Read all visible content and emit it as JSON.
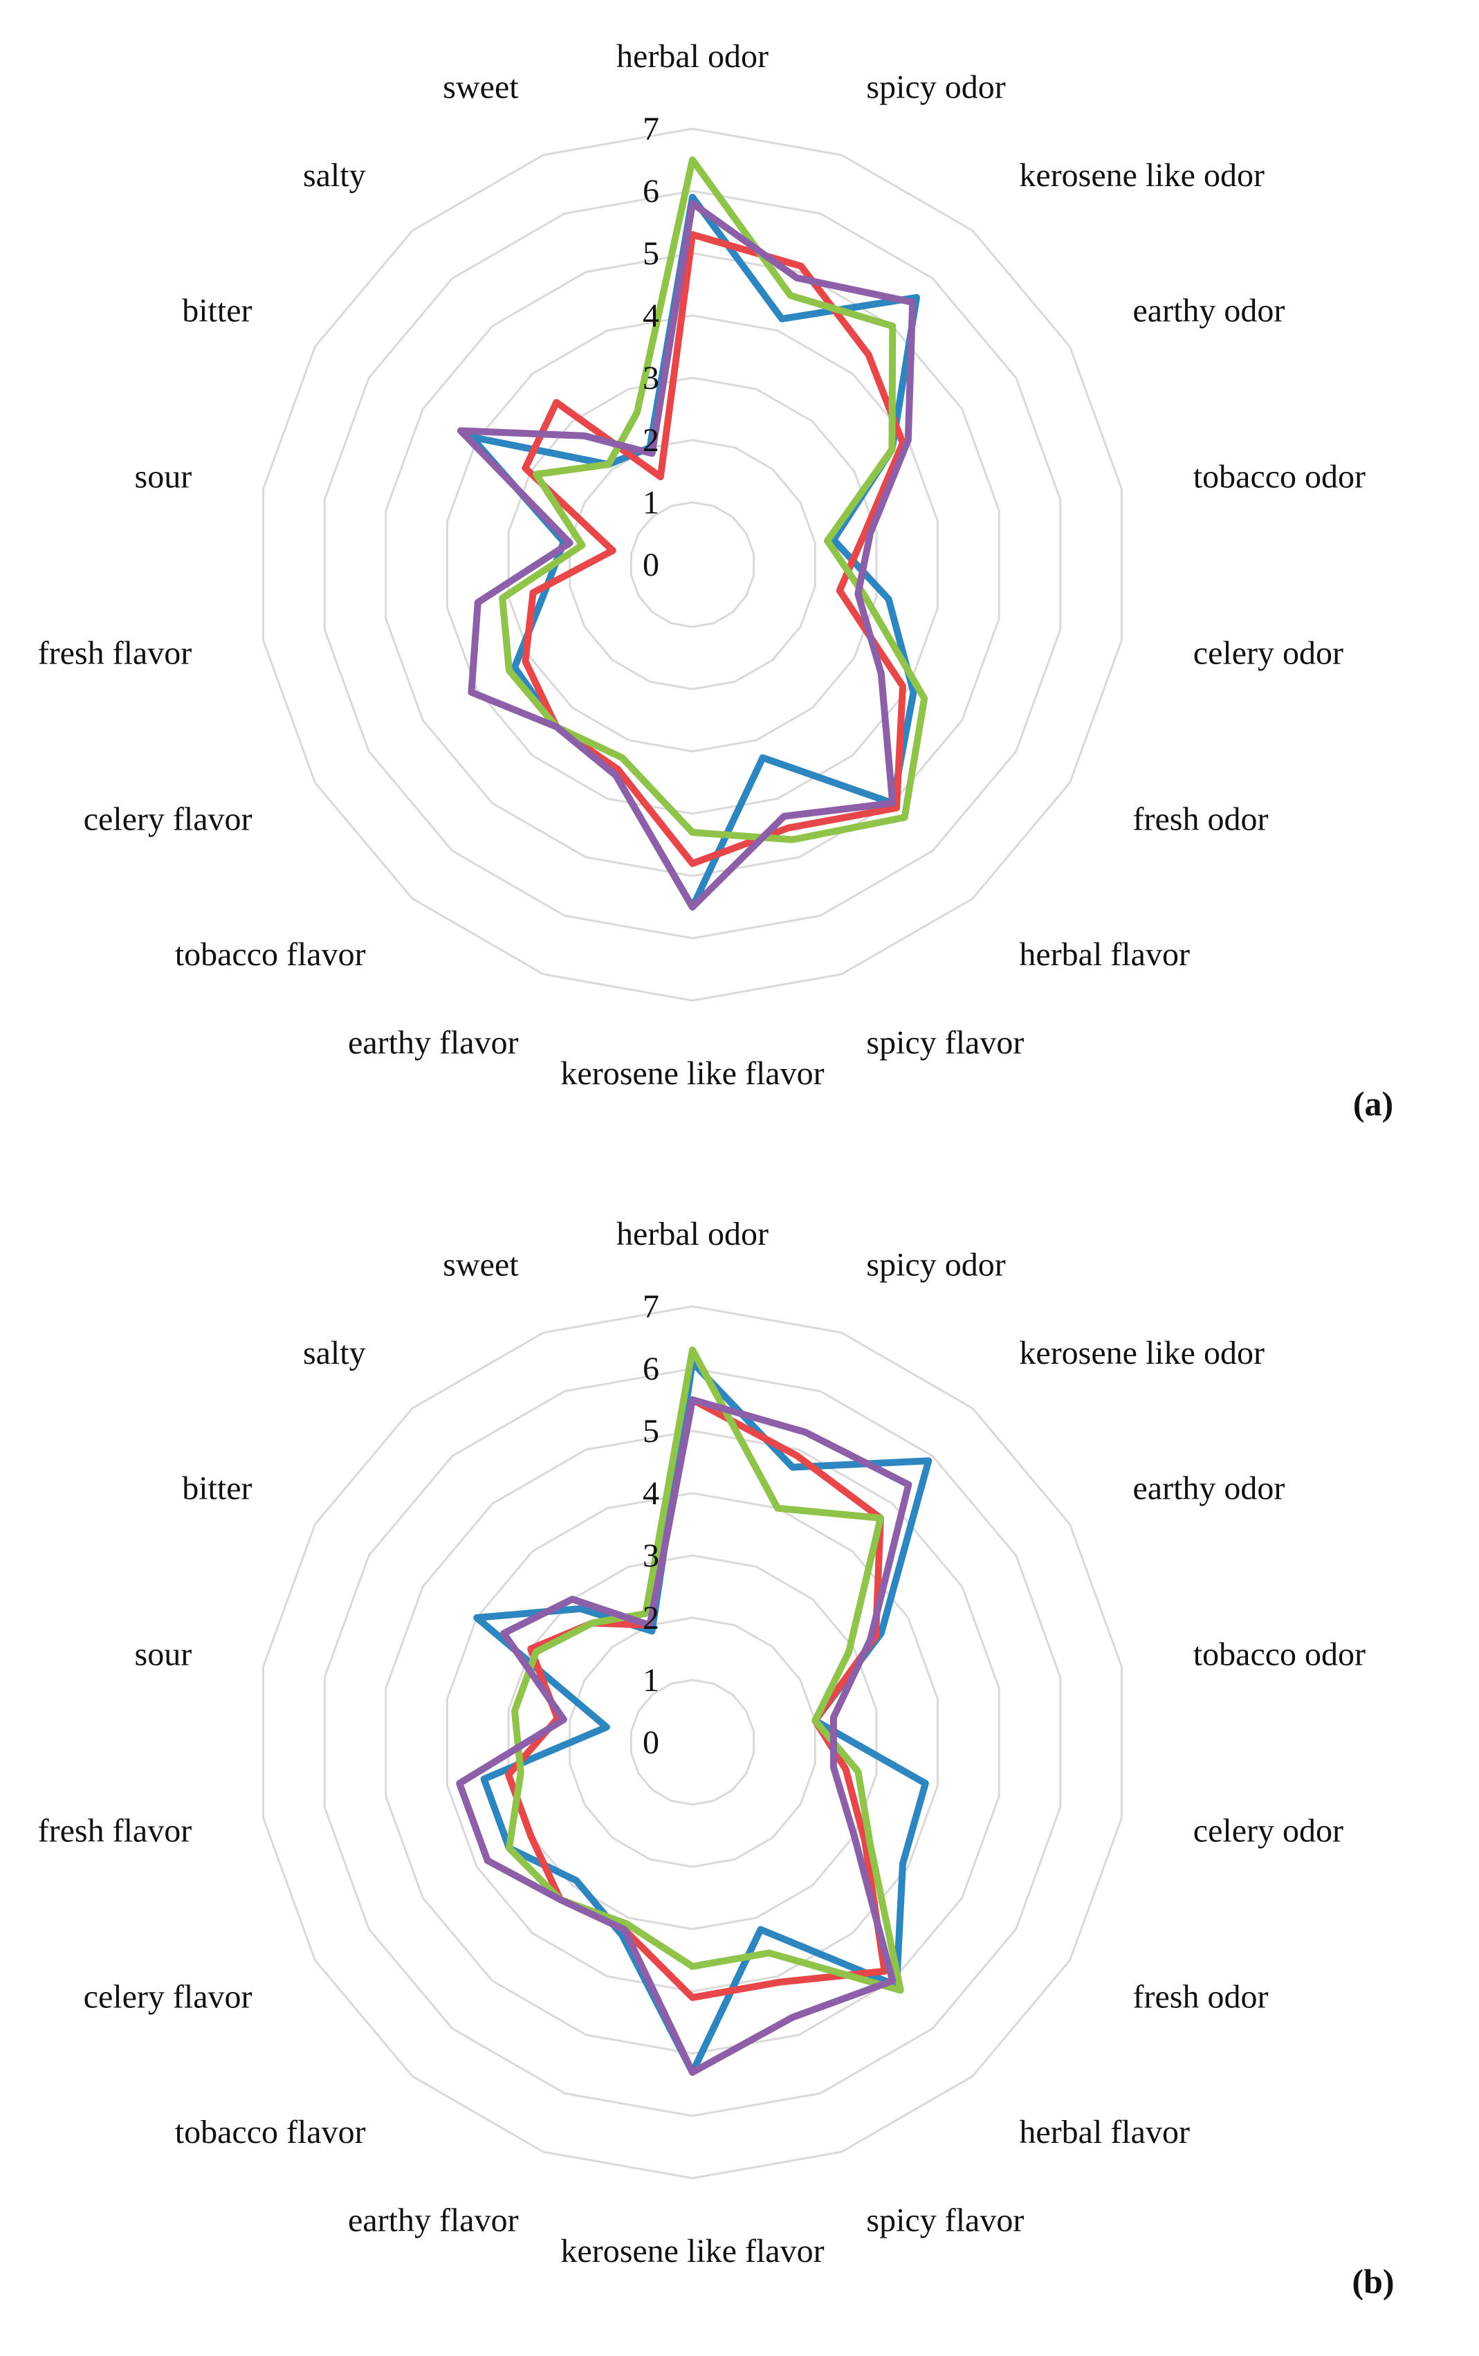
{
  "chart_data": [
    {
      "type": "radar",
      "panel_label": "(a)",
      "categories": [
        "herbal odor",
        "spicy odor",
        "kerosene like odor",
        "earthy odor",
        "tobacco odor",
        "celery odor",
        "fresh odor",
        "herbal flavor",
        "spicy flavor",
        "kerosene like flavor",
        "earthy flavor",
        "tobacco flavor",
        "celery flavor",
        "fresh flavor",
        "sour",
        "bitter",
        "salty",
        "sweet"
      ],
      "r_ticks": [
        "0",
        "1",
        "2",
        "3",
        "4",
        "5",
        "6",
        "7"
      ],
      "rlim": [
        0,
        7
      ],
      "grid": true,
      "series": [
        {
          "color": "#2e86c1",
          "values": [
            5.9,
            4.2,
            5.6,
            3.7,
            2.3,
            3.2,
            4.1,
            5.0,
            3.3,
            5.5,
            3.6,
            3.4,
            3.3,
            2.4,
            2.1,
            4.1,
            2.1,
            2.0
          ]
        },
        {
          "color": "#e8474a",
          "values": [
            5.3,
            5.1,
            4.4,
            3.9,
            2.8,
            2.4,
            3.9,
            5.1,
            4.5,
            4.8,
            3.5,
            3.4,
            3.1,
            2.6,
            1.3,
            3.1,
            3.4,
            1.5
          ]
        },
        {
          "color": "#8fc34a",
          "values": [
            6.5,
            4.6,
            5.0,
            3.7,
            2.2,
            2.8,
            4.3,
            5.3,
            4.7,
            4.3,
            3.3,
            3.4,
            3.4,
            3.1,
            1.8,
            2.9,
            2.1,
            2.6
          ]
        },
        {
          "color": "#8c5fa8",
          "values": [
            5.8,
            4.9,
            5.5,
            4.0,
            2.9,
            2.7,
            3.5,
            5.0,
            4.3,
            5.5,
            3.6,
            3.4,
            4.1,
            3.5,
            2.0,
            4.3,
            2.7,
            1.9
          ]
        }
      ]
    },
    {
      "type": "radar",
      "panel_label": "(b)",
      "categories": [
        "herbal odor",
        "spicy odor",
        "kerosene like odor",
        "earthy odor",
        "tobacco odor",
        "celery odor",
        "fresh odor",
        "herbal flavor",
        "spicy flavor",
        "kerosene like flavor",
        "earthy flavor",
        "tobacco flavor",
        "celery flavor",
        "fresh flavor",
        "sour",
        "bitter",
        "salty",
        "sweet"
      ],
      "r_ticks": [
        "0",
        "1",
        "2",
        "3",
        "4",
        "5",
        "6",
        "7"
      ],
      "rlim": [
        0,
        7
      ],
      "grid": true,
      "series": [
        {
          "color": "#2e86c1",
          "values": [
            6.1,
            4.7,
            5.9,
            3.5,
            2.0,
            3.8,
            3.9,
            5.1,
            3.2,
            5.3,
            3.3,
            2.9,
            3.4,
            3.4,
            1.4,
            4.0,
            2.8,
            1.9
          ]
        },
        {
          "color": "#e8474a",
          "values": [
            5.5,
            4.9,
            4.7,
            3.4,
            2.0,
            2.5,
            3.2,
            4.8,
            4.1,
            4.1,
            3.2,
            3.3,
            3.0,
            3.0,
            2.2,
            3.0,
            2.5,
            2.0
          ]
        },
        {
          "color": "#8fc34a",
          "values": [
            6.3,
            4.0,
            4.7,
            2.9,
            2.0,
            2.7,
            3.3,
            5.2,
            3.6,
            3.6,
            3.1,
            3.3,
            3.4,
            2.8,
            2.9,
            2.9,
            2.5,
            2.2
          ]
        },
        {
          "color": "#8c5fa8",
          "values": [
            5.5,
            5.3,
            5.4,
            3.3,
            2.3,
            2.3,
            3.0,
            5.0,
            4.7,
            5.3,
            3.2,
            3.3,
            3.8,
            3.8,
            2.1,
            3.5,
            3.0,
            2.0
          ]
        }
      ]
    }
  ]
}
